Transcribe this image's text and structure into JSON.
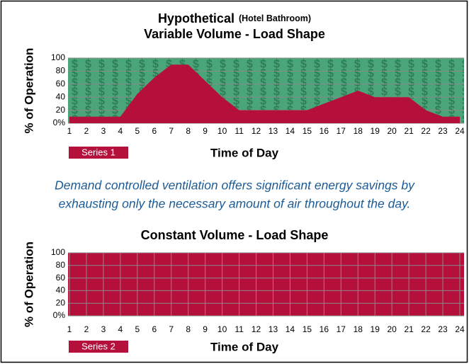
{
  "chart_data": [
    {
      "type": "area",
      "title": "Hypothetical",
      "title_note": "(Hotel Bathroom)",
      "subtitle": "Variable Volume - Load Shape",
      "ylabel": "% of Operation",
      "xlabel": "Time of Day",
      "x": [
        1,
        2,
        3,
        4,
        5,
        6,
        7,
        8,
        9,
        10,
        11,
        12,
        13,
        14,
        15,
        16,
        17,
        18,
        19,
        20,
        21,
        22,
        23,
        24
      ],
      "xlim": [
        1,
        24
      ],
      "xticks": [
        1,
        2,
        3,
        4,
        5,
        6,
        7,
        8,
        9,
        10,
        11,
        12,
        13,
        14,
        15,
        16,
        17,
        18,
        19,
        20,
        21,
        22,
        23,
        24
      ],
      "ylim": [
        0,
        100
      ],
      "yticks": [
        {
          "value": 0,
          "label": "0%"
        },
        20,
        40,
        60,
        80,
        100
      ],
      "grid": "y",
      "background": "#4aa57a",
      "background_symbol": "$",
      "series": [
        {
          "name": "Series 1",
          "color": "#b5103c",
          "values": [
            10,
            10,
            10,
            10,
            45,
            70,
            90,
            90,
            65,
            40,
            20,
            20,
            20,
            20,
            20,
            30,
            40,
            50,
            40,
            40,
            40,
            20,
            10,
            10
          ]
        }
      ]
    },
    {
      "type": "area",
      "title": "Constant Volume - Load Shape",
      "ylabel": "% of Operation",
      "xlabel": "Time of Day",
      "x": [
        1,
        2,
        3,
        4,
        5,
        6,
        7,
        8,
        9,
        10,
        11,
        12,
        13,
        14,
        15,
        16,
        17,
        18,
        19,
        20,
        21,
        22,
        23,
        24
      ],
      "xlim": [
        1,
        24
      ],
      "xticks": [
        1,
        2,
        3,
        4,
        5,
        6,
        7,
        8,
        9,
        10,
        11,
        12,
        13,
        14,
        15,
        16,
        17,
        18,
        19,
        20,
        21,
        22,
        23,
        24
      ],
      "ylim": [
        0,
        100
      ],
      "yticks": [
        {
          "value": 0,
          "label": "0%"
        },
        20,
        40,
        60,
        80,
        100
      ],
      "grid": "both",
      "series": [
        {
          "name": "Series 2",
          "color": "#b5103c",
          "values": [
            100,
            100,
            100,
            100,
            100,
            100,
            100,
            100,
            100,
            100,
            100,
            100,
            100,
            100,
            100,
            100,
            100,
            100,
            100,
            100,
            100,
            100,
            100,
            100
          ]
        }
      ]
    }
  ],
  "caption": [
    "Demand controlled ventilation offers significant energy savings by",
    "exhausting only the necessary amount of air throughout the day."
  ]
}
